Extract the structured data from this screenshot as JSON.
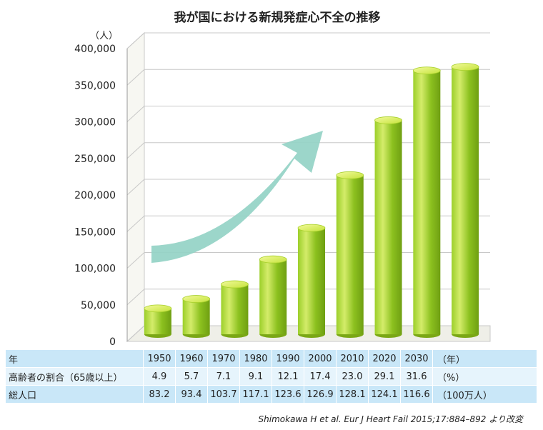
{
  "chart_data": {
    "type": "bar",
    "title": "我が国における新規発症心不全の推移",
    "y_unit": "（人）",
    "categories": [
      "1950",
      "1960",
      "1970",
      "1980",
      "1990",
      "2000",
      "2010",
      "2020",
      "2030"
    ],
    "values": [
      45000,
      58000,
      78000,
      112000,
      155000,
      227000,
      302000,
      370000,
      375000
    ],
    "ylim": [
      0,
      400000
    ],
    "yticks": [
      "0",
      "50,000",
      "100,000",
      "150,000",
      "200,000",
      "250,000",
      "300,000",
      "350,000",
      "400,000"
    ],
    "ytick_values": [
      0,
      50000,
      100000,
      150000,
      200000,
      250000,
      300000,
      350000,
      400000
    ],
    "grid": true,
    "bar_color": "#8cc11f",
    "arrow_color": "#94d3c6"
  },
  "table": {
    "rows": [
      {
        "label": "年",
        "values": [
          "1950",
          "1960",
          "1970",
          "1980",
          "1990",
          "2000",
          "2010",
          "2020",
          "2030"
        ],
        "unit": "（年）"
      },
      {
        "label": "高齢者の割合（65歳以上）",
        "values": [
          "4.9",
          "5.7",
          "7.1",
          "9.1",
          "12.1",
          "17.4",
          "23.0",
          "29.1",
          "31.6"
        ],
        "unit": "（%）"
      },
      {
        "label": "総人口",
        "values": [
          "83.2",
          "93.4",
          "103.7",
          "117.1",
          "123.6",
          "126.9",
          "128.1",
          "124.1",
          "116.6"
        ],
        "unit": "（100万人）"
      }
    ]
  },
  "source": "Shimokawa H et al. Eur J Heart Fail 2015;17:884–892 より改変"
}
